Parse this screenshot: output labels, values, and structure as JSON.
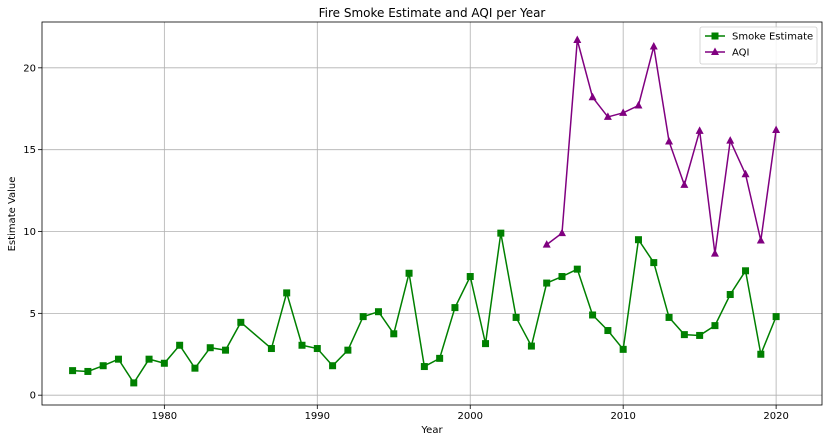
{
  "chart_data": {
    "type": "line",
    "title": "Fire Smoke Estimate and AQI per Year",
    "xlabel": "Year",
    "ylabel": "Estimate Value",
    "xlim": [
      1972,
      2023
    ],
    "ylim": [
      -0.6,
      22.8
    ],
    "x_ticks": [
      1980,
      1990,
      2000,
      2010,
      2020
    ],
    "y_ticks": [
      0,
      5,
      10,
      15,
      20
    ],
    "grid": true,
    "legend_position": "top-right",
    "series": [
      {
        "name": "Smoke Estimate",
        "color": "#008000",
        "marker": "square",
        "x": [
          1974,
          1975,
          1976,
          1977,
          1978,
          1979,
          1980,
          1981,
          1982,
          1983,
          1984,
          1985,
          1987,
          1988,
          1989,
          1990,
          1991,
          1992,
          1993,
          1994,
          1995,
          1996,
          1997,
          1998,
          1999,
          2000,
          2001,
          2002,
          2003,
          2004,
          2005,
          2006,
          2007,
          2008,
          2009,
          2010,
          2011,
          2012,
          2013,
          2014,
          2015,
          2016,
          2017,
          2018,
          2019,
          2020
        ],
        "y": [
          1.5,
          1.45,
          1.8,
          2.2,
          0.75,
          2.2,
          1.95,
          3.05,
          1.65,
          2.9,
          2.75,
          4.45,
          2.85,
          6.25,
          3.05,
          2.85,
          1.8,
          2.75,
          4.8,
          5.1,
          3.75,
          7.45,
          1.75,
          2.25,
          5.35,
          7.25,
          3.15,
          9.9,
          4.75,
          3.0,
          6.85,
          7.25,
          7.7,
          4.9,
          3.95,
          2.8,
          9.5,
          8.1,
          4.75,
          3.7,
          3.65,
          4.25,
          6.15,
          7.6,
          2.5,
          4.8
        ]
      },
      {
        "name": "AQI",
        "color": "#800080",
        "marker": "triangle",
        "x": [
          2005,
          2006,
          2007,
          2008,
          2009,
          2010,
          2011,
          2012,
          2013,
          2014,
          2015,
          2016,
          2017,
          2018,
          2019,
          2020
        ],
        "y": [
          9.2,
          9.9,
          21.7,
          18.2,
          17.0,
          17.25,
          17.7,
          21.3,
          15.5,
          12.85,
          16.15,
          8.65,
          15.55,
          13.5,
          9.45,
          16.2
        ]
      }
    ]
  }
}
